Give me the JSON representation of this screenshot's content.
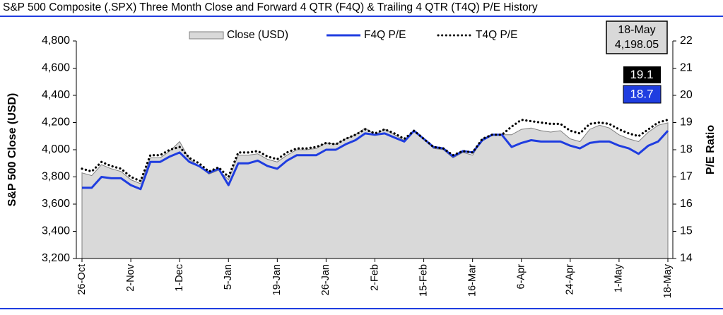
{
  "chart_data": {
    "type": "line",
    "title": "S&P 500 Composite (.SPX) Three Month Close and Forward 4 QTR (F4Q) & Trailing 4 QTR (T4Q) P/E History",
    "y_label": "S&P 500 Close (USD)",
    "y2_label": "P/E Ratio",
    "categories": [
      "26-Oct",
      null,
      null,
      null,
      null,
      "2-Nov",
      null,
      null,
      null,
      null,
      "1-Dec",
      null,
      null,
      null,
      null,
      "5-Jan",
      null,
      null,
      null,
      null,
      "19-Jan",
      null,
      null,
      null,
      null,
      "26-Jan",
      null,
      null,
      null,
      null,
      "2-Feb",
      null,
      null,
      null,
      null,
      "15-Feb",
      null,
      null,
      null,
      null,
      "16-Mar",
      null,
      null,
      null,
      null,
      "6-Apr",
      null,
      null,
      null,
      null,
      "24-Apr",
      null,
      null,
      null,
      null,
      "1-May",
      null,
      null,
      null,
      null,
      "18-May"
    ],
    "series": [
      {
        "name": "Close (USD)",
        "color": "#d9d9d9",
        "style": "area",
        "axis": "y",
        "values": [
          3830,
          3810,
          3890,
          3860,
          3840,
          3780,
          3750,
          3940,
          3940,
          3990,
          4060,
          3930,
          3880,
          3820,
          3850,
          3780,
          3960,
          3960,
          3970,
          3930,
          3910,
          3960,
          4000,
          4000,
          4010,
          4050,
          4040,
          4080,
          4110,
          4160,
          4110,
          4150,
          4110,
          4070,
          4140,
          4080,
          4010,
          4000,
          3940,
          3980,
          3960,
          4080,
          4110,
          4110,
          4110,
          4150,
          4160,
          4140,
          4130,
          4140,
          4080,
          4060,
          4150,
          4180,
          4160,
          4110,
          4080,
          4060,
          4130,
          4180,
          4198.05
        ],
        "value_labels": [
          null,
          null,
          null,
          null,
          null,
          null,
          null,
          null,
          null,
          null,
          null,
          null,
          null,
          null,
          null,
          null,
          null,
          null,
          null,
          null,
          null,
          null,
          null,
          null,
          null,
          null,
          null,
          null,
          null,
          null,
          null,
          null,
          null,
          null,
          null,
          null,
          null,
          null,
          null,
          null,
          null,
          null,
          null,
          null,
          null,
          null,
          null,
          null,
          null,
          null,
          null,
          null,
          null,
          null,
          null,
          null,
          null,
          null,
          null,
          null,
          "4,198.05"
        ]
      },
      {
        "name": "F4Q P/E",
        "color": "#1f3de0",
        "style": "solid",
        "axis": "y2",
        "values": [
          16.6,
          16.6,
          17.0,
          16.95,
          16.95,
          16.7,
          16.55,
          17.55,
          17.55,
          17.75,
          17.9,
          17.55,
          17.4,
          17.15,
          17.3,
          16.7,
          17.5,
          17.5,
          17.6,
          17.4,
          17.3,
          17.6,
          17.8,
          17.8,
          17.8,
          18.0,
          18.0,
          18.2,
          18.35,
          18.6,
          18.55,
          18.6,
          18.45,
          18.3,
          18.7,
          18.4,
          18.1,
          18.05,
          17.75,
          17.95,
          17.9,
          18.35,
          18.55,
          18.55,
          18.1,
          18.25,
          18.35,
          18.3,
          18.3,
          18.3,
          18.15,
          18.05,
          18.25,
          18.3,
          18.3,
          18.15,
          18.05,
          17.85,
          18.15,
          18.3,
          18.7
        ]
      },
      {
        "name": "T4Q P/E",
        "color": "#000000",
        "style": "dotted",
        "axis": "y2",
        "values": [
          17.3,
          17.2,
          17.55,
          17.4,
          17.3,
          17.0,
          16.85,
          17.8,
          17.8,
          18.0,
          18.1,
          17.7,
          17.5,
          17.2,
          17.35,
          17.0,
          17.9,
          17.9,
          17.95,
          17.75,
          17.65,
          17.9,
          18.05,
          18.05,
          18.1,
          18.25,
          18.2,
          18.4,
          18.55,
          18.75,
          18.6,
          18.75,
          18.6,
          18.4,
          18.7,
          18.4,
          18.1,
          18.05,
          17.8,
          17.95,
          17.9,
          18.4,
          18.55,
          18.55,
          18.85,
          19.1,
          19.05,
          19.0,
          18.95,
          18.95,
          18.7,
          18.6,
          18.95,
          19.0,
          18.95,
          18.75,
          18.6,
          18.5,
          18.75,
          19.0,
          19.1
        ]
      }
    ],
    "ylim": [
      3200,
      4800
    ],
    "yticks": [
      {
        "value": 3200,
        "label": "3,200"
      },
      {
        "value": 3400,
        "label": "3,400"
      },
      {
        "value": 3600,
        "label": "3,600"
      },
      {
        "value": 3800,
        "label": "3,800"
      },
      {
        "value": 4000,
        "label": "4,000"
      },
      {
        "value": 4200,
        "label": "4,200"
      },
      {
        "value": 4400,
        "label": "4,400"
      },
      {
        "value": 4600,
        "label": "4,600"
      },
      {
        "value": 4800,
        "label": "4,800"
      }
    ],
    "y2lim": [
      14,
      22
    ],
    "y2ticks": [
      14,
      15,
      16,
      17,
      18,
      19,
      20,
      21,
      22
    ],
    "legend": "top",
    "grid": false
  }
}
